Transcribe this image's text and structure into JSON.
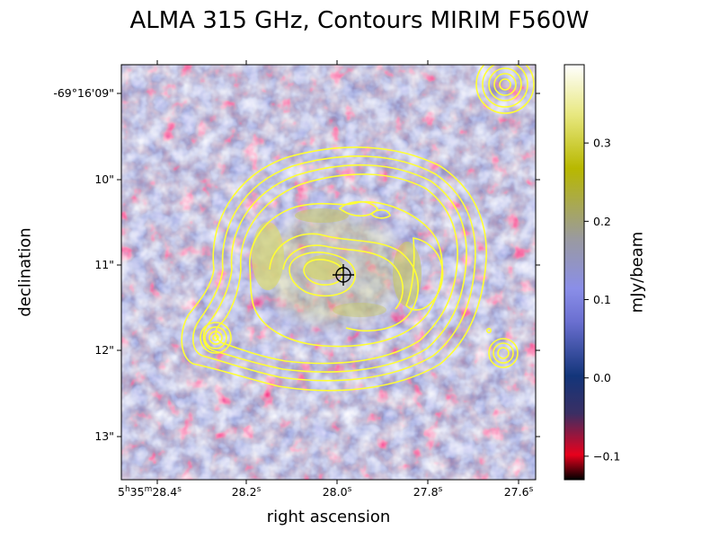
{
  "chart_data": {
    "type": "heatmap",
    "title": "ALMA 315 GHz, Contours MIRIM F560W",
    "xlabel": "right ascension",
    "ylabel": "declination",
    "x_ticks": [
      {
        "label": "5h35m28.4s",
        "h": "5",
        "m": "35",
        "s": "28.4"
      },
      {
        "label": "28.2s",
        "s": "28.2"
      },
      {
        "label": "28.0s",
        "s": "28.0"
      },
      {
        "label": "27.8s",
        "s": "27.8"
      },
      {
        "label": "27.6s",
        "s": "27.6"
      }
    ],
    "y_ticks": [
      "-69°16'09\"",
      "10\"",
      "11\"",
      "12\"",
      "13\""
    ],
    "colorbar": {
      "label": "mJy/beam",
      "range": [
        -0.13,
        0.4
      ],
      "ticks": [
        -0.1,
        0.0,
        0.1,
        0.2,
        0.3
      ],
      "colormap": [
        "#000000",
        "#e8001c",
        "#3a2f64",
        "#13357a",
        "#6a6fd0",
        "#8a8ee8",
        "#9a9aa0",
        "#b8b800",
        "#e8e880",
        "#ffffff"
      ]
    },
    "contour_color": "#ffff33",
    "marker": "crosshair"
  }
}
